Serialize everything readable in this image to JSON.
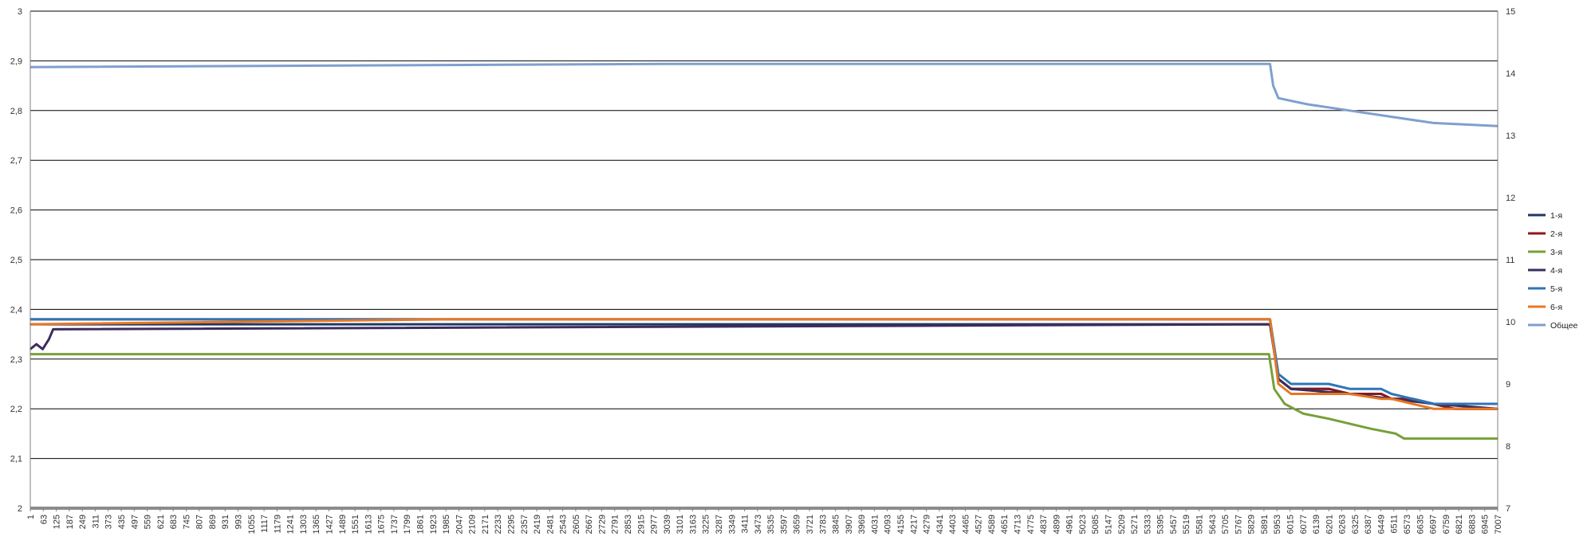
{
  "chart_data": {
    "type": "line",
    "title": "",
    "xlabel": "",
    "ylabel": "",
    "legend_position": "right",
    "grid": true,
    "y_left": {
      "range": [
        2.0,
        3.0
      ],
      "ticks": [
        2.0,
        2.1,
        2.2,
        2.3,
        2.4,
        2.5,
        2.6,
        2.7,
        2.8,
        2.9,
        3.0
      ],
      "tick_labels": [
        "2",
        "2,1",
        "2,2",
        "2,3",
        "2,4",
        "2,5",
        "2,6",
        "2,7",
        "2,8",
        "2,9",
        "3"
      ]
    },
    "y_right": {
      "range": [
        7,
        15
      ],
      "ticks": [
        7,
        8,
        9,
        10,
        11,
        12,
        13,
        14,
        15
      ],
      "tick_labels": [
        "7",
        "8",
        "9",
        "10",
        "11",
        "12",
        "13",
        "14",
        "15"
      ]
    },
    "x_range": [
      1,
      7007
    ],
    "x_tick_labels": [
      "1",
      "63",
      "125",
      "187",
      "249",
      "311",
      "373",
      "435",
      "497",
      "559",
      "621",
      "683",
      "745",
      "807",
      "869",
      "931",
      "993",
      "1055",
      "1117",
      "1179",
      "1241",
      "1303",
      "1365",
      "1427",
      "1489",
      "1551",
      "1613",
      "1675",
      "1737",
      "1799",
      "1861",
      "1923",
      "1985",
      "2047",
      "2109",
      "2171",
      "2233",
      "2295",
      "2357",
      "2419",
      "2481",
      "2543",
      "2605",
      "2667",
      "2729",
      "2791",
      "2853",
      "2915",
      "2977",
      "3039",
      "3101",
      "3163",
      "3225",
      "3287",
      "3349",
      "3411",
      "3473",
      "3535",
      "3597",
      "3659",
      "3721",
      "3783",
      "3845",
      "3907",
      "3969",
      "4031",
      "4093",
      "4155",
      "4217",
      "4279",
      "4341",
      "4403",
      "4465",
      "4527",
      "4589",
      "4651",
      "4713",
      "4775",
      "4837",
      "4899",
      "4961",
      "5023",
      "5085",
      "5147",
      "5209",
      "5271",
      "5333",
      "5395",
      "5457",
      "5519",
      "5581",
      "5643",
      "5705",
      "5767",
      "5829",
      "5891",
      "5953",
      "6015",
      "6077",
      "6139",
      "6201",
      "6263",
      "6325",
      "6387",
      "6449",
      "6511",
      "6573",
      "6635",
      "6697",
      "6759",
      "6821",
      "6883",
      "6945",
      "7007"
    ],
    "series": [
      {
        "name": "1-я",
        "axis": "left",
        "color": "#1f3864",
        "x": [
          1,
          5920,
          5960,
          6020,
          6200,
          6300,
          6450,
          6500,
          6600,
          6700,
          6800,
          6900,
          7007
        ],
        "y": [
          2.37,
          2.37,
          2.26,
          2.24,
          2.24,
          2.23,
          2.23,
          2.22,
          2.22,
          2.21,
          2.2,
          2.2,
          2.2
        ]
      },
      {
        "name": "2-я",
        "axis": "left",
        "color": "#8b1a1a",
        "x": [
          1,
          5920,
          5960,
          6020,
          6200,
          6300,
          6450,
          6500,
          6600,
          6700,
          6800,
          6900,
          7007
        ],
        "y": [
          2.38,
          2.38,
          2.26,
          2.24,
          2.24,
          2.23,
          2.23,
          2.22,
          2.22,
          2.21,
          2.2,
          2.2,
          2.2
        ]
      },
      {
        "name": "3-я",
        "axis": "left",
        "color": "#77a03a",
        "x": [
          1,
          5915,
          5940,
          5990,
          6080,
          6200,
          6300,
          6400,
          6520,
          6560,
          6700,
          7007
        ],
        "y": [
          2.31,
          2.31,
          2.24,
          2.21,
          2.19,
          2.18,
          2.17,
          2.16,
          2.15,
          2.14,
          2.14,
          2.14
        ]
      },
      {
        "name": "4-я",
        "axis": "left",
        "color": "#3d2c5e",
        "x": [
          1,
          30,
          60,
          90,
          110,
          5920,
          5960,
          6020,
          6300,
          6500,
          6700,
          7007
        ],
        "y": [
          2.32,
          2.33,
          2.32,
          2.34,
          2.36,
          2.37,
          2.26,
          2.24,
          2.23,
          2.22,
          2.21,
          2.2
        ]
      },
      {
        "name": "5-я",
        "axis": "left",
        "color": "#2e75b6",
        "x": [
          1,
          5920,
          5960,
          6020,
          6200,
          6300,
          6450,
          6500,
          6600,
          6700,
          6800,
          6900,
          7007
        ],
        "y": [
          2.38,
          2.38,
          2.27,
          2.25,
          2.25,
          2.24,
          2.24,
          2.23,
          2.22,
          2.21,
          2.21,
          2.21,
          2.21
        ]
      },
      {
        "name": "6-я",
        "axis": "left",
        "color": "#e87722",
        "x": [
          1,
          2000,
          5920,
          5960,
          6020,
          6200,
          6300,
          6450,
          6500,
          6600,
          6700,
          6800,
          7007
        ],
        "y": [
          2.37,
          2.38,
          2.38,
          2.25,
          2.23,
          2.23,
          2.23,
          2.22,
          2.22,
          2.21,
          2.2,
          2.2,
          2.2
        ]
      },
      {
        "name": "Общее",
        "axis": "right",
        "color": "#7f9fcf",
        "x": [
          1,
          3000,
          5920,
          5935,
          5960,
          6100,
          6300,
          6500,
          6700,
          7007
        ],
        "y": [
          14.1,
          14.15,
          14.15,
          13.8,
          13.6,
          13.5,
          13.4,
          13.3,
          13.2,
          13.15
        ]
      }
    ]
  }
}
